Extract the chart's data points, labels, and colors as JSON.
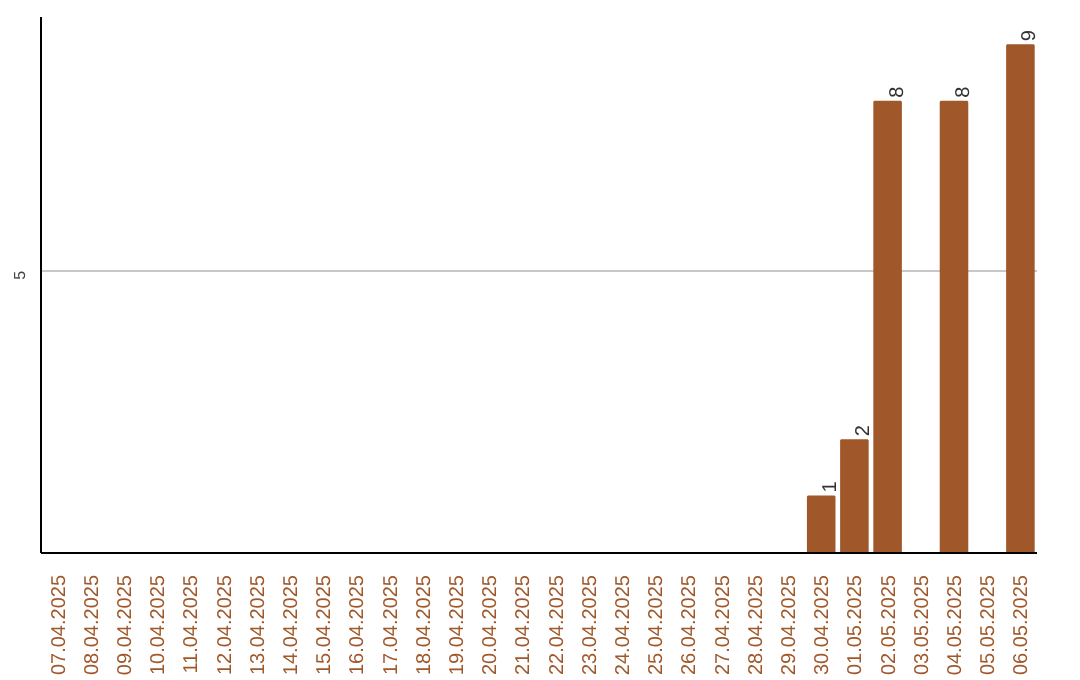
{
  "chart_data": {
    "type": "bar",
    "categories": [
      "07.04.2025",
      "08.04.2025",
      "09.04.2025",
      "10.04.2025",
      "11.04.2025",
      "12.04.2025",
      "13.04.2025",
      "14.04.2025",
      "15.04.2025",
      "16.04.2025",
      "17.04.2025",
      "18.04.2025",
      "19.04.2025",
      "20.04.2025",
      "21.04.2025",
      "22.04.2025",
      "23.04.2025",
      "24.04.2025",
      "25.04.2025",
      "26.04.2025",
      "27.04.2025",
      "28.04.2025",
      "29.04.2025",
      "30.04.2025",
      "01.05.2025",
      "02.05.2025",
      "03.05.2025",
      "04.05.2025",
      "05.05.2025",
      "06.05.2025"
    ],
    "values": [
      null,
      null,
      null,
      null,
      null,
      null,
      null,
      null,
      null,
      null,
      null,
      null,
      null,
      null,
      null,
      null,
      null,
      null,
      null,
      null,
      null,
      null,
      null,
      1,
      2,
      8,
      null,
      8,
      null,
      9
    ],
    "value_labels": [
      null,
      null,
      null,
      null,
      null,
      null,
      null,
      null,
      null,
      null,
      null,
      null,
      null,
      null,
      null,
      null,
      null,
      null,
      null,
      null,
      null,
      null,
      null,
      "1",
      "2",
      "8",
      null,
      "8",
      null,
      "9"
    ],
    "color": "#a0582a",
    "ylim": [
      0,
      9.5
    ],
    "yticks": [
      5
    ],
    "grid": "y"
  }
}
